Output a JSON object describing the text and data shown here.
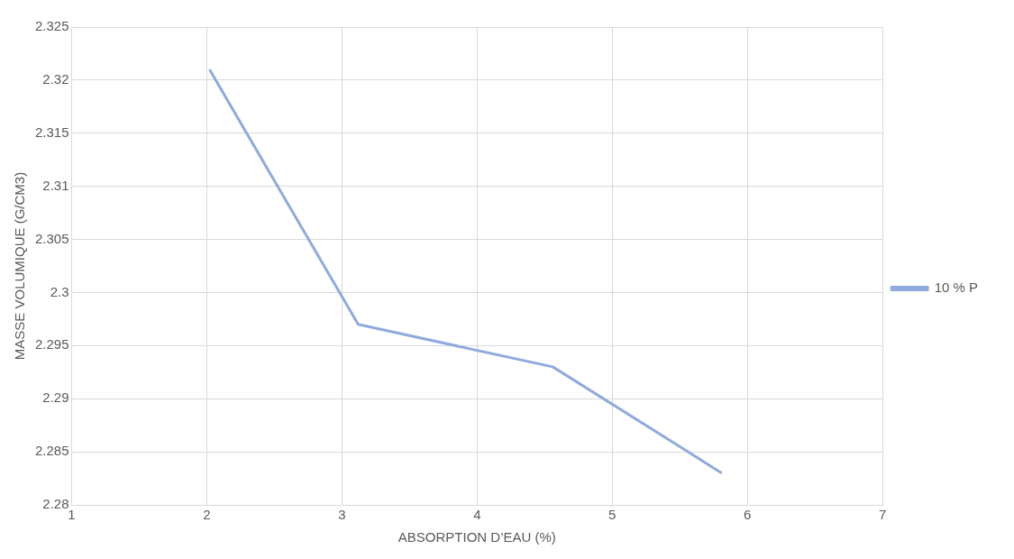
{
  "chart_data": {
    "type": "line",
    "xlabel": "ABSORPTION D’EAU (%)",
    "ylabel": "MASSE VOLUMIQUE (G/CM3)",
    "x": [
      2.02,
      3.12,
      4.56,
      5.81
    ],
    "series": [
      {
        "name": "10 % P",
        "color": "#8faadc",
        "values": [
          2.321,
          2.297,
          2.293,
          2.283
        ]
      }
    ],
    "xlim": [
      1,
      7
    ],
    "xticks": [
      1,
      2,
      3,
      4,
      5,
      6,
      7
    ],
    "ylim": [
      2.28,
      2.325
    ],
    "yticks": [
      2.28,
      2.285,
      2.29,
      2.295,
      2.3,
      2.305,
      2.31,
      2.315,
      2.32,
      2.325
    ],
    "grid": true,
    "legend": "right",
    "marker": "none",
    "line_style": "solid"
  }
}
